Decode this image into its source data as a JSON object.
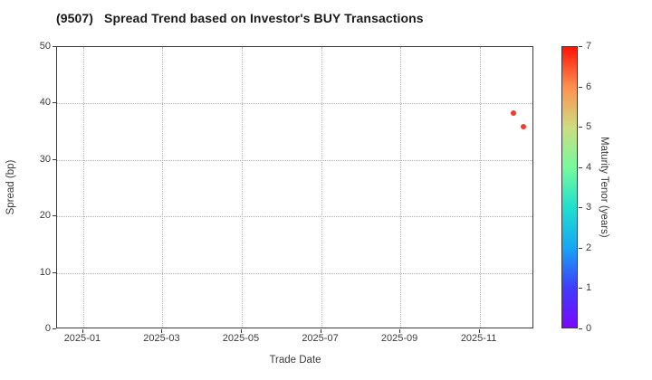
{
  "title": "(9507)   Spread Trend based on Investor's BUY Transactions",
  "chart_data": {
    "type": "scatter",
    "title": "(9507)   Spread Trend based on Investor's BUY Transactions",
    "xlabel": "Trade Date",
    "ylabel": "Spread (bp)",
    "ylim": [
      0,
      50
    ],
    "y_ticks": [
      0,
      10,
      20,
      30,
      40,
      50
    ],
    "y_grid_ticks": [
      10,
      20,
      30,
      40
    ],
    "x_tick_labels": [
      "2025-01",
      "2025-03",
      "2025-05",
      "2025-07",
      "2025-09",
      "2025-11"
    ],
    "x_tick_months": [
      0,
      2,
      4,
      6,
      8,
      10
    ],
    "xlim_months": [
      -0.66,
      11.38
    ],
    "grid": "dotted",
    "legend": "none",
    "points": [
      {
        "date": "2025-11-26",
        "x_months": 10.86,
        "spread_bp": 38.3,
        "tenor_years": 6.5,
        "color": "#f23b2a"
      },
      {
        "date": "2025-12-04",
        "x_months": 11.1,
        "spread_bp": 35.9,
        "tenor_years": 6.5,
        "color": "#f23b2a"
      }
    ],
    "colorbar": {
      "label": "Maturity Tenor (years)",
      "min": 0,
      "max": 7,
      "ticks": [
        0,
        1,
        2,
        3,
        4,
        5,
        6,
        7
      ],
      "colormap": "rainbow",
      "gradient_stops_bottom_to_top": [
        "#7a06fe",
        "#3f3cfc",
        "#17a7f5",
        "#1fe0cd",
        "#77fa9e",
        "#cddc80",
        "#fe9150",
        "#fe1406"
      ]
    }
  }
}
